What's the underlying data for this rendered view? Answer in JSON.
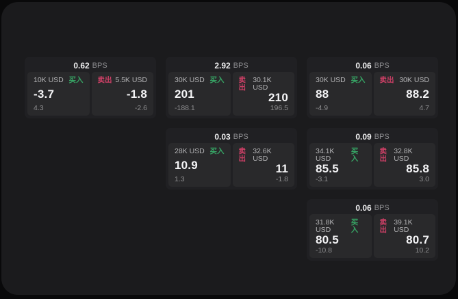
{
  "labels": {
    "bps": "BPS",
    "buy": "买入",
    "sell": "卖出"
  },
  "theme": {
    "page_bg": "#09090a",
    "panel_bg": "#1b1b1d",
    "card_bg": "#202023",
    "cell_bg": "#29292b",
    "buy_color": "#37a565",
    "sell_color": "#cd4066"
  },
  "columns": [
    {
      "cards": [
        {
          "bps": "0.62",
          "buy": {
            "size": "10K USD",
            "value": "-3.7",
            "sub": "4.3"
          },
          "sell": {
            "size": "5.5K USD",
            "value": "-1.8",
            "sub": "-2.6"
          }
        }
      ]
    },
    {
      "cards": [
        {
          "bps": "2.92",
          "buy": {
            "size": "30K USD",
            "value": "201",
            "sub": "-188.1"
          },
          "sell": {
            "size": "30.1K USD",
            "value": "210",
            "sub": "196.5"
          }
        },
        {
          "bps": "0.03",
          "buy": {
            "size": "28K USD",
            "value": "10.9",
            "sub": "1.3"
          },
          "sell": {
            "size": "32.6K USD",
            "value": "11",
            "sub": "-1.8"
          }
        }
      ]
    },
    {
      "cards": [
        {
          "bps": "0.06",
          "buy": {
            "size": "30K USD",
            "value": "88",
            "sub": "-4.9"
          },
          "sell": {
            "size": "30K USD",
            "value": "88.2",
            "sub": "4.7"
          }
        },
        {
          "bps": "0.09",
          "buy": {
            "size": "34.1K USD",
            "value": "85.5",
            "sub": "-3.1"
          },
          "sell": {
            "size": "32.8K USD",
            "value": "85.8",
            "sub": "3.0"
          }
        },
        {
          "bps": "0.06",
          "buy": {
            "size": "31.8K USD",
            "value": "80.5",
            "sub": "-10.8"
          },
          "sell": {
            "size": "39.1K USD",
            "value": "80.7",
            "sub": "10.2"
          }
        }
      ]
    }
  ]
}
